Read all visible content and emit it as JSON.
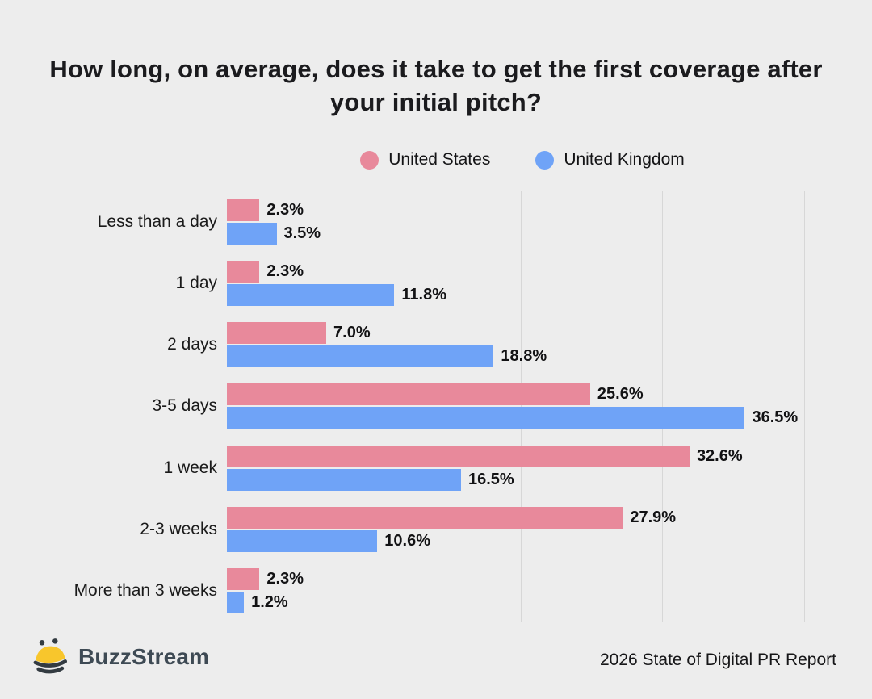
{
  "title": "How long, on average, does it take to get the first coverage after your initial pitch?",
  "chart_data": {
    "type": "bar",
    "orientation": "horizontal",
    "title": "How long, on average, does it take to get the first coverage after your initial pitch?",
    "categories": [
      "Less than a day",
      "1 day",
      "2 days",
      "3-5 days",
      "1 week",
      "2-3 weeks",
      "More than 3 weeks"
    ],
    "series": [
      {
        "name": "United States",
        "color": "#E8899B",
        "values": [
          2.3,
          2.3,
          7.0,
          25.6,
          32.6,
          27.9,
          2.3
        ],
        "labels": [
          "2.3%",
          "2.3%",
          "7.0%",
          "25.6%",
          "32.6%",
          "27.9%",
          "2.3%"
        ]
      },
      {
        "name": "United Kingdom",
        "color": "#6FA3F7",
        "values": [
          3.5,
          11.8,
          18.8,
          36.5,
          16.5,
          10.6,
          1.2
        ],
        "labels": [
          "3.5%",
          "11.8%",
          "18.8%",
          "36.5%",
          "16.5%",
          "10.6%",
          "1.2%"
        ]
      }
    ],
    "value_suffix": "%",
    "xlim": [
      0,
      40
    ],
    "gridlines": [
      0,
      10,
      20,
      30,
      40
    ],
    "grid": true,
    "legend_position": "top-center",
    "bar_label_position": "outside-end"
  },
  "legend": {
    "items": [
      {
        "label": "United States",
        "color": "#E8899B"
      },
      {
        "label": "United Kingdom",
        "color": "#6FA3F7"
      }
    ]
  },
  "footer": {
    "brand": "BuzzStream",
    "report": "2026 State of Digital PR Report"
  },
  "colors": {
    "background": "#EDEDED",
    "gridline": "#D7D7D7",
    "title_text": "#1B1B1E",
    "label_text": "#1A1A1A",
    "brand_text": "#3E4A54",
    "bee_yellow": "#F8C62C",
    "bee_dark": "#333B41"
  },
  "icons": {
    "bee": "bee-icon"
  }
}
